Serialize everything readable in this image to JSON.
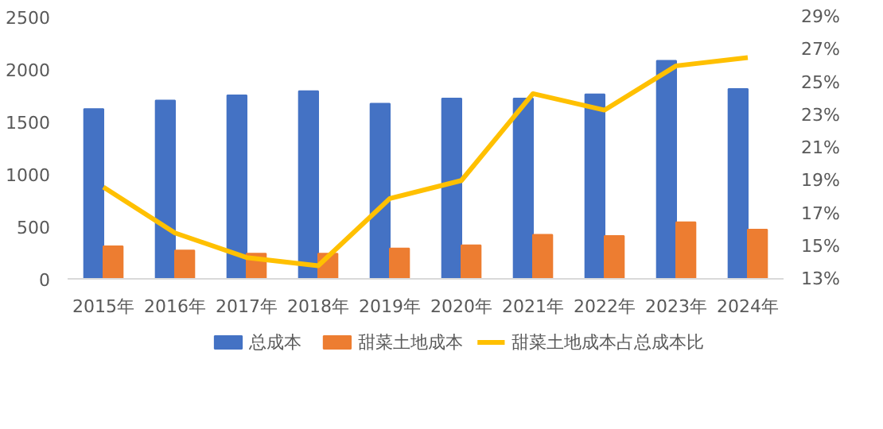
{
  "chart_data": {
    "type": "bar",
    "categories": [
      "2015年",
      "2016年",
      "2017年",
      "2018年",
      "2019年",
      "2020年",
      "2021年",
      "2022年",
      "2023年",
      "2024年"
    ],
    "series": [
      {
        "name": "总成本",
        "color": "#4472c4",
        "values": [
          1620,
          1700,
          1750,
          1790,
          1670,
          1720,
          1720,
          1760,
          2080,
          1810
        ]
      },
      {
        "name": "甜菜土地成本",
        "color": "#ed7d31",
        "values": [
          310,
          270,
          240,
          240,
          290,
          320,
          420,
          410,
          540,
          470
        ]
      },
      {
        "name": "甜菜土地成本占总成本比",
        "type": "line",
        "axis": "y2",
        "color": "#ffc000",
        "values": [
          18.6,
          15.8,
          14.3,
          13.8,
          17.9,
          19.0,
          24.3,
          23.3,
          26.0,
          26.5
        ]
      }
    ],
    "ylim": [
      0,
      2500
    ],
    "yticks": [
      0,
      500,
      1000,
      1500,
      2000,
      2500
    ],
    "y2lim": [
      13,
      29
    ],
    "y2ticks": [
      {
        "value": 13,
        "label": "13%"
      },
      {
        "value": 15,
        "label": "15%"
      },
      {
        "value": 17,
        "label": "17%"
      },
      {
        "value": 19,
        "label": "19%"
      },
      {
        "value": 21,
        "label": "21%"
      },
      {
        "value": 23,
        "label": "23%"
      },
      {
        "value": 25,
        "label": "25%"
      },
      {
        "value": 27,
        "label": "27%"
      },
      {
        "value": 29,
        "label": "29%"
      }
    ],
    "grid": false,
    "legend": "bottom",
    "marker": "none",
    "line_style": "solid"
  }
}
